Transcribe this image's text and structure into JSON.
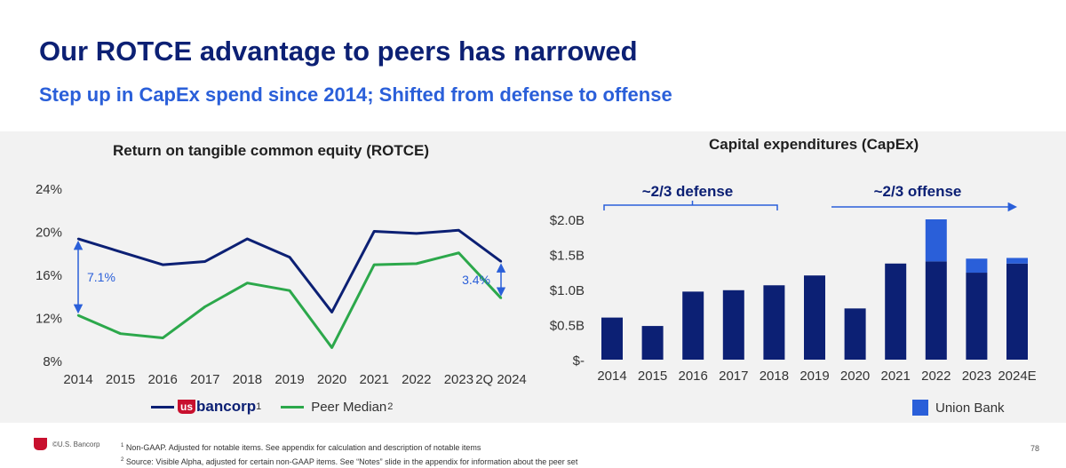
{
  "slide": {
    "title": "Our ROTCE advantage to peers has narrowed",
    "subtitle": "Step up in CapEx spend since 2014; Shifted from defense to offense",
    "page_number": "78",
    "copyright": "©U.S. Bancorp",
    "footnotes": [
      {
        "num": "1",
        "text": "Non-GAAP. Adjusted for notable items. See appendix for calculation and description of notable items"
      },
      {
        "num": "2",
        "text": "Source: Visible Alpha, adjusted for certain non-GAAP items. See “Notes” slide in the appendix for information about the peer set"
      }
    ]
  },
  "chart_data": [
    {
      "type": "line",
      "title": "Return on tangible common equity (ROTCE)",
      "categories": [
        "2014",
        "2015",
        "2016",
        "2017",
        "2018",
        "2019",
        "2020",
        "2021",
        "2022",
        "2023",
        "2Q 2024"
      ],
      "ylim": [
        8,
        24
      ],
      "yticks": [
        8,
        12,
        16,
        20,
        24
      ],
      "ytick_labels": [
        "8%",
        "12%",
        "16%",
        "20%",
        "24%"
      ],
      "series": [
        {
          "name": "usbancorp",
          "label": "bancorp",
          "brand": "us",
          "footnote": "1",
          "color": "#0c2074",
          "values": [
            19.3,
            18.1,
            16.9,
            17.2,
            19.3,
            17.6,
            12.5,
            20.0,
            19.8,
            20.1,
            17.2
          ]
        },
        {
          "name": "peer-median",
          "label": "Peer Median",
          "footnote": "2",
          "color": "#2ca84b",
          "values": [
            12.2,
            10.5,
            10.1,
            13.0,
            15.2,
            14.5,
            9.2,
            16.9,
            17.0,
            18.0,
            13.8
          ]
        }
      ],
      "annotations": [
        {
          "label": "7.1%",
          "at": "2014",
          "from": 19.3,
          "to": 12.2
        },
        {
          "label": "3.4%",
          "at": "2Q 2024",
          "from": 17.2,
          "to": 13.8
        }
      ]
    },
    {
      "type": "bar",
      "title": "Capital expenditures (CapEx)",
      "categories": [
        "2014",
        "2015",
        "2016",
        "2017",
        "2018",
        "2019",
        "2020",
        "2021",
        "2022",
        "2023",
        "2024E"
      ],
      "ylim": [
        0,
        2.0
      ],
      "yticks": [
        0,
        0.5,
        1.0,
        1.5,
        2.0
      ],
      "ytick_labels": [
        "$-",
        "$0.5B",
        "$1.0B",
        "$1.5B",
        "$2.0B"
      ],
      "series": [
        {
          "name": "usbancorp",
          "color": "#0c2074",
          "values": [
            0.6,
            0.48,
            0.97,
            0.99,
            1.06,
            1.2,
            0.73,
            1.37,
            1.4,
            1.24,
            1.37
          ]
        },
        {
          "name": "Union Bank",
          "color": "#2a5fd9",
          "values": [
            0,
            0,
            0,
            0,
            0,
            0,
            0,
            0,
            0.6,
            0.2,
            0.08
          ]
        }
      ],
      "legend": [
        "Union Bank"
      ],
      "annotations": [
        {
          "label": "~2/3 defense",
          "span": [
            "2014",
            "2018"
          ]
        },
        {
          "label": "~2/3 offense",
          "span": [
            "2019",
            "2024E"
          ],
          "arrow": true
        }
      ]
    }
  ]
}
